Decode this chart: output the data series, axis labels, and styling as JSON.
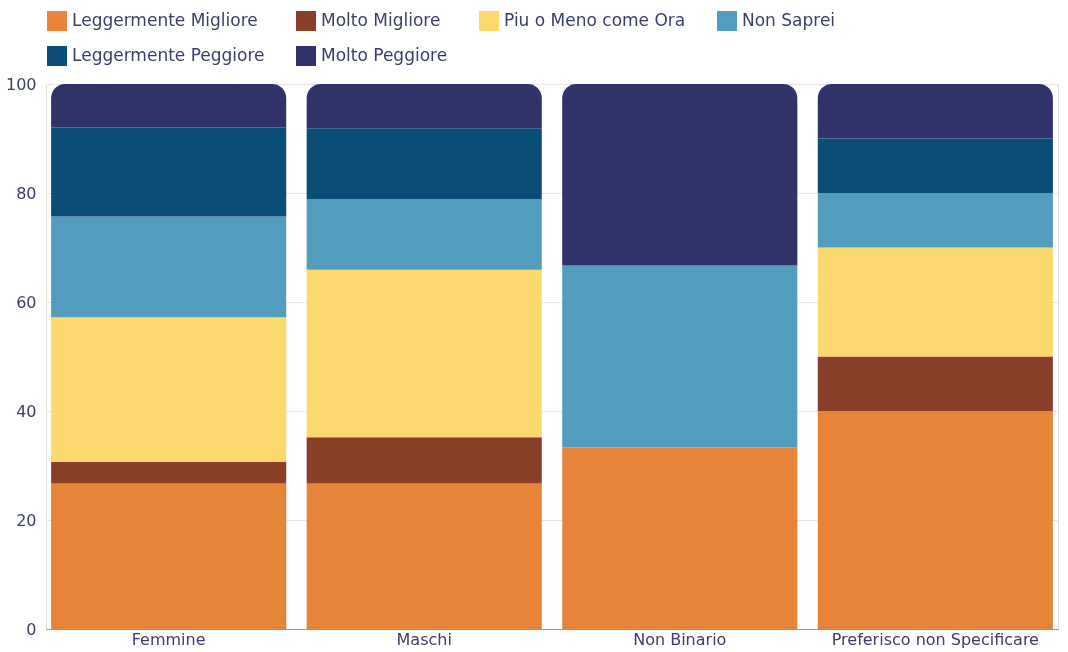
{
  "chart_data": {
    "type": "bar",
    "stacked": true,
    "categories": [
      "Femmine",
      "Maschi",
      "Non Binario",
      "Preferisco non Specificare"
    ],
    "series": [
      {
        "name": "Leggermente Migliore",
        "color": "#e8843a",
        "values": [
          26.7,
          26.7,
          33.3,
          40
        ]
      },
      {
        "name": "Molto Migliore",
        "color": "#8a3f28",
        "values": [
          4,
          8.5,
          null,
          10
        ]
      },
      {
        "name": "Piu o Meno come Ora",
        "color": "#fcd96f",
        "values": [
          26.5,
          30.7,
          null,
          20
        ]
      },
      {
        "name": "Non Saprei",
        "color": "#529cbd",
        "values": [
          18.5,
          13,
          33.4,
          10
        ]
      },
      {
        "name": "Leggermente Peggiore",
        "color": "#0a4e78",
        "values": [
          16.3,
          13,
          null,
          10
        ]
      },
      {
        "name": "Molto Peggiore",
        "color": "#30336a",
        "values": [
          8,
          8.1,
          33.3,
          10
        ]
      }
    ],
    "ylim": [
      0,
      100
    ],
    "yticks": [
      0,
      20,
      40,
      60,
      80,
      100
    ],
    "grid": "y",
    "legend": "top"
  }
}
